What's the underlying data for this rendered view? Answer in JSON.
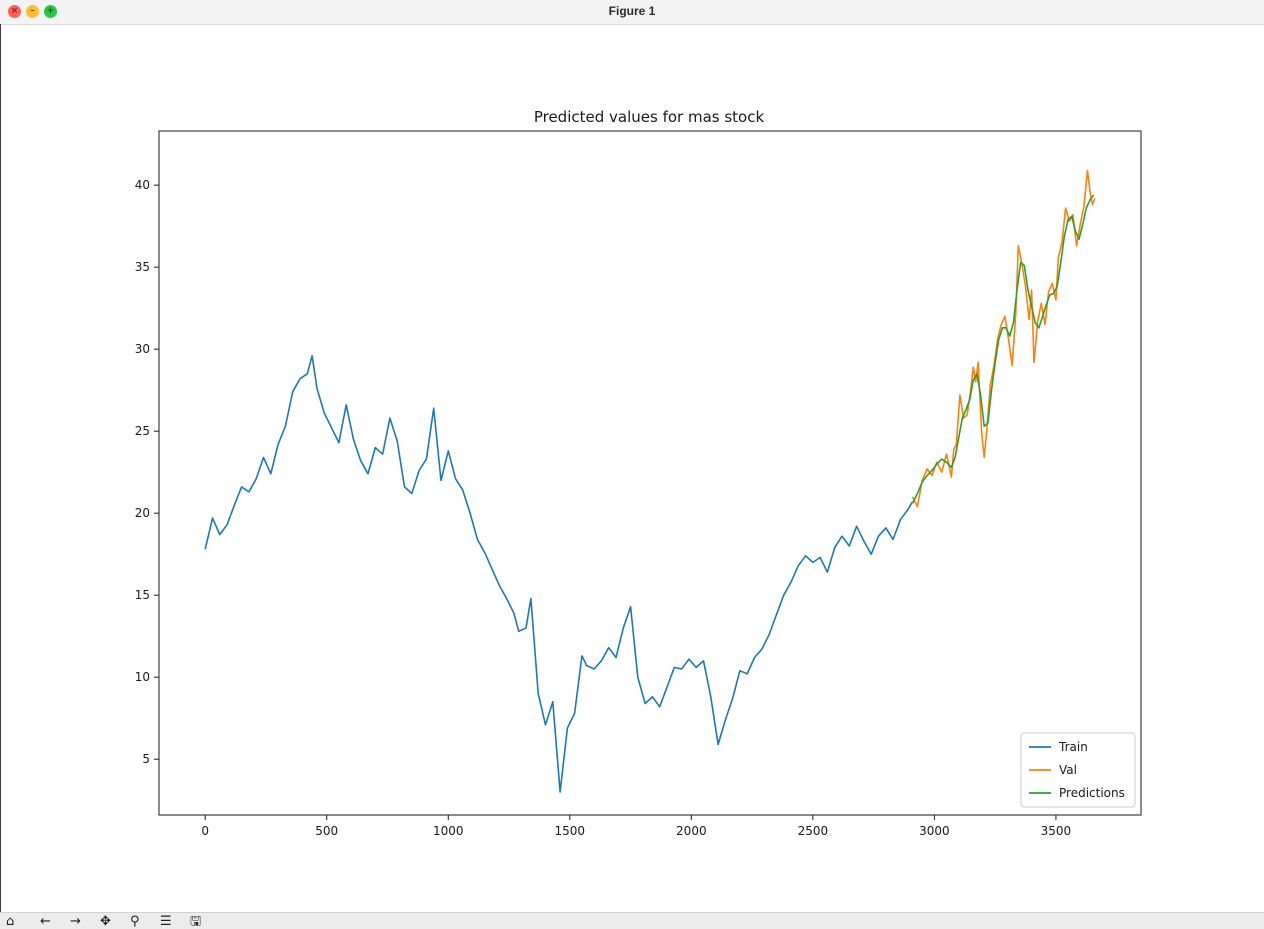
{
  "window": {
    "title": "Figure 1",
    "buttons": {
      "close": {
        "glyph": "×",
        "color": "#ff5f57"
      },
      "minimize": {
        "glyph": "–",
        "color": "#febc2e"
      },
      "maximize": {
        "glyph": "+",
        "color": "#28c840"
      }
    }
  },
  "toolbar": {
    "items": [
      {
        "name": "home-icon",
        "glyph": "⌂"
      },
      {
        "name": "back-icon",
        "glyph": "←"
      },
      {
        "name": "forward-icon",
        "glyph": "→"
      },
      {
        "name": "pan-icon",
        "glyph": "✥"
      },
      {
        "name": "zoom-icon",
        "glyph": "⚲"
      },
      {
        "name": "configure-subplots-icon",
        "glyph": "☰"
      },
      {
        "name": "save-icon",
        "glyph": "🖫"
      }
    ]
  },
  "chart_data": {
    "type": "line",
    "title": "Predicted values for mas stock",
    "xlabel": "",
    "ylabel": "",
    "xlim": [
      -190,
      3850
    ],
    "ylim": [
      1.6,
      43.3
    ],
    "xticks": [
      0,
      500,
      1000,
      1500,
      2000,
      2500,
      3000,
      3500
    ],
    "yticks": [
      5,
      10,
      15,
      20,
      25,
      30,
      35,
      40
    ],
    "grid": false,
    "legend": "lower right",
    "series": [
      {
        "name": "Train",
        "color": "#1f77b4",
        "x": [
          0,
          30,
          60,
          90,
          120,
          150,
          180,
          210,
          240,
          270,
          300,
          330,
          360,
          390,
          420,
          440,
          460,
          490,
          520,
          550,
          580,
          610,
          640,
          670,
          700,
          730,
          760,
          790,
          820,
          850,
          880,
          910,
          940,
          970,
          1000,
          1030,
          1060,
          1090,
          1120,
          1150,
          1180,
          1210,
          1240,
          1270,
          1290,
          1320,
          1340,
          1370,
          1400,
          1430,
          1460,
          1490,
          1520,
          1550,
          1570,
          1600,
          1630,
          1660,
          1690,
          1720,
          1750,
          1780,
          1810,
          1840,
          1870,
          1900,
          1930,
          1960,
          1990,
          2020,
          2050,
          2080,
          2110,
          2140,
          2170,
          2200,
          2230,
          2260,
          2290,
          2320,
          2350,
          2380,
          2410,
          2440,
          2470,
          2500,
          2530,
          2560,
          2590,
          2620,
          2650,
          2680,
          2710,
          2740,
          2770,
          2800,
          2830,
          2860,
          2890,
          2910
        ],
        "y": [
          17.8,
          19.7,
          18.7,
          19.3,
          20.5,
          21.6,
          21.3,
          22.1,
          23.4,
          22.4,
          24.2,
          25.3,
          27.4,
          28.2,
          28.5,
          29.6,
          27.6,
          26.1,
          25.2,
          24.3,
          26.6,
          24.5,
          23.2,
          22.4,
          24.0,
          23.6,
          25.8,
          24.4,
          21.6,
          21.2,
          22.6,
          23.3,
          26.4,
          22.0,
          23.8,
          22.1,
          21.4,
          20.0,
          18.4,
          17.6,
          16.6,
          15.6,
          14.8,
          13.9,
          12.8,
          13.0,
          14.8,
          9.0,
          7.1,
          8.5,
          3.0,
          6.9,
          7.8,
          11.3,
          10.7,
          10.5,
          11.0,
          11.8,
          11.2,
          13.0,
          14.3,
          10.0,
          8.4,
          8.8,
          8.2,
          9.4,
          10.6,
          10.5,
          11.1,
          10.6,
          11.0,
          8.8,
          5.9,
          7.4,
          8.7,
          10.4,
          10.2,
          11.2,
          11.7,
          12.6,
          13.8,
          15.0,
          15.8,
          16.8,
          17.4,
          17.0,
          17.3,
          16.4,
          17.9,
          18.6,
          18.0,
          19.2,
          18.3,
          17.5,
          18.6,
          19.1,
          18.4,
          19.6,
          20.2,
          20.7
        ]
      },
      {
        "name": "Val",
        "color": "#ff7f0e",
        "x": [
          2910,
          2930,
          2950,
          2970,
          2990,
          3010,
          3030,
          3050,
          3070,
          3080,
          3090,
          3105,
          3120,
          3135,
          3150,
          3160,
          3170,
          3180,
          3195,
          3205,
          3215,
          3230,
          3245,
          3260,
          3275,
          3290,
          3305,
          3320,
          3335,
          3345,
          3360,
          3375,
          3390,
          3400,
          3410,
          3425,
          3440,
          3455,
          3470,
          3485,
          3500,
          3510,
          3525,
          3540,
          3555,
          3570,
          3585,
          3600,
          3615,
          3630,
          3640,
          3650,
          3660
        ],
        "y": [
          21.0,
          20.4,
          22.0,
          22.7,
          22.3,
          23.1,
          22.5,
          23.6,
          22.2,
          23.9,
          24.2,
          27.2,
          25.8,
          26.0,
          27.6,
          28.9,
          28.0,
          29.2,
          24.8,
          23.4,
          25.0,
          27.8,
          29.0,
          30.6,
          31.5,
          32.0,
          30.6,
          29.0,
          32.2,
          36.3,
          35.2,
          33.8,
          31.8,
          33.6,
          29.2,
          31.7,
          32.8,
          31.5,
          33.5,
          34.0,
          33.0,
          35.6,
          36.5,
          38.6,
          37.8,
          38.2,
          36.3,
          37.6,
          38.7,
          40.9,
          39.6,
          38.8,
          39.2
        ]
      },
      {
        "name": "Predictions",
        "color": "#2ca02c",
        "x": [
          2910,
          2930,
          2950,
          2970,
          2990,
          3010,
          3030,
          3050,
          3070,
          3085,
          3100,
          3115,
          3130,
          3145,
          3160,
          3175,
          3190,
          3205,
          3220,
          3235,
          3250,
          3265,
          3280,
          3295,
          3310,
          3325,
          3340,
          3355,
          3370,
          3385,
          3400,
          3415,
          3430,
          3445,
          3460,
          3475,
          3490,
          3505,
          3520,
          3535,
          3550,
          3565,
          3580,
          3595,
          3610,
          3625,
          3640,
          3655
        ],
        "y": [
          20.6,
          21.2,
          21.9,
          22.3,
          22.6,
          23.0,
          23.3,
          23.1,
          22.8,
          23.4,
          24.6,
          25.8,
          26.3,
          26.9,
          28.1,
          28.5,
          27.2,
          25.3,
          25.5,
          27.5,
          29.2,
          30.6,
          31.3,
          31.3,
          30.8,
          31.6,
          33.6,
          35.3,
          35.1,
          33.6,
          32.6,
          31.6,
          31.3,
          32.0,
          32.7,
          33.3,
          33.4,
          33.8,
          35.3,
          36.9,
          37.9,
          38.1,
          37.2,
          36.7,
          37.6,
          38.6,
          39.1,
          39.4
        ]
      }
    ]
  }
}
